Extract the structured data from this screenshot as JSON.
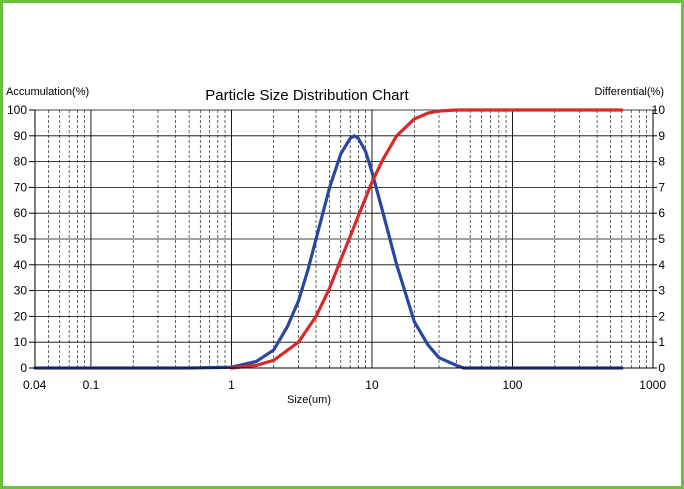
{
  "chart_data": {
    "type": "line",
    "title": "Particle Size Distribution Chart",
    "xlabel": "Size(um)",
    "ylabel_left": "Accumulation(%)",
    "ylabel_right": "Differential(%)",
    "x_scale": "log",
    "xlim": [
      0.04,
      1000
    ],
    "ylim_left": [
      0,
      100
    ],
    "ylim_right": [
      0,
      10
    ],
    "x_ticks": [
      "0.04",
      "0.1",
      "1",
      "10",
      "100",
      "1000"
    ],
    "y_ticks_left": [
      "0",
      "10",
      "20",
      "30",
      "40",
      "50",
      "60",
      "70",
      "80",
      "90",
      "100"
    ],
    "y_ticks_right": [
      "0",
      "1",
      "2",
      "3",
      "4",
      "5",
      "6",
      "7",
      "8",
      "9",
      "10"
    ],
    "grid": true,
    "series": [
      {
        "axis": "right",
        "color": "#2a46a0",
        "x": [
          0.04,
          0.5,
          1.0,
          1.5,
          2.0,
          2.5,
          3.0,
          3.5,
          4.0,
          5.0,
          6.0,
          7.0,
          7.5,
          8.0,
          9.0,
          10.0,
          12.0,
          15.0,
          20.0,
          25.0,
          30.0,
          40.0,
          45.0,
          100.0,
          600.0
        ],
        "values": [
          0,
          0,
          0.03,
          0.25,
          0.7,
          1.6,
          2.6,
          3.8,
          5.0,
          7.0,
          8.3,
          8.9,
          9.0,
          8.9,
          8.4,
          7.6,
          6.0,
          4.0,
          1.8,
          0.9,
          0.4,
          0.1,
          0.0,
          0.0,
          0.0
        ]
      },
      {
        "axis": "left",
        "color": "#d42a2a",
        "x": [
          1.0,
          1.5,
          2.0,
          3.0,
          4.0,
          5.0,
          6.0,
          7.0,
          8.0,
          10.0,
          12.0,
          15.0,
          20.0,
          25.0,
          30.0,
          40.0,
          100.0,
          600.0
        ],
        "values": [
          0,
          1.0,
          3.0,
          10.0,
          20.0,
          31.0,
          42.0,
          51.0,
          59.0,
          72.0,
          81.0,
          90.0,
          96.5,
          98.8,
          99.6,
          100,
          100,
          100
        ]
      }
    ]
  }
}
